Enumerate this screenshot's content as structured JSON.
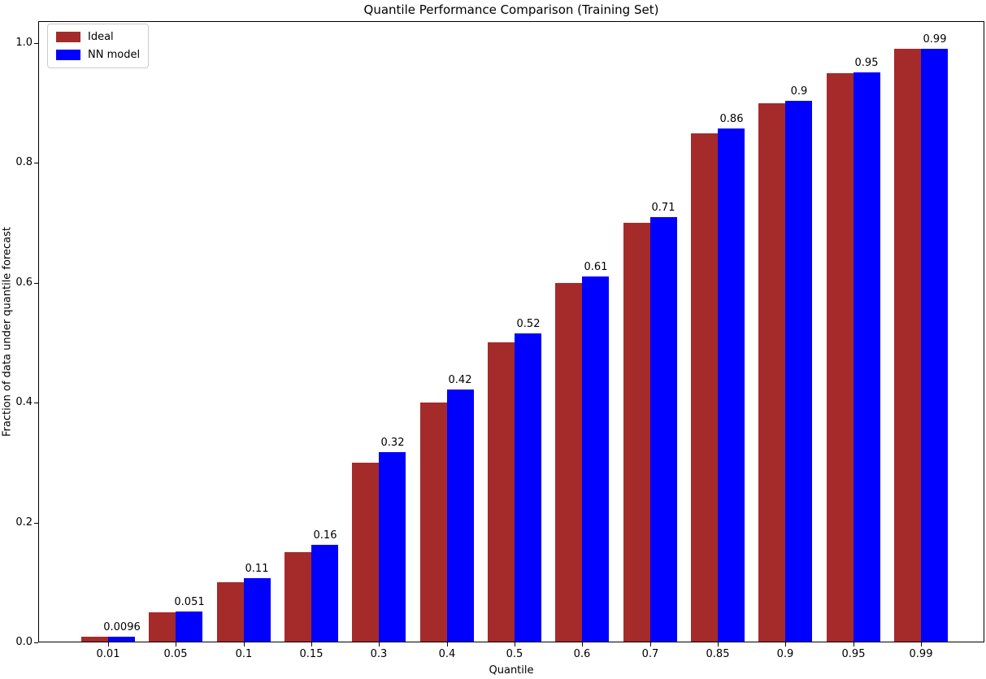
{
  "chart_data": {
    "type": "bar",
    "title": "Quantile Performance Comparison (Training Set)",
    "xlabel": "Quantile",
    "ylabel": "Fraction of data under quantile forecast",
    "categories": [
      "0.01",
      "0.05",
      "0.1",
      "0.15",
      "0.3",
      "0.4",
      "0.5",
      "0.6",
      "0.7",
      "0.85",
      "0.9",
      "0.95",
      "0.99"
    ],
    "series": [
      {
        "name": "Ideal",
        "color": "#a52a2a",
        "values": [
          0.01,
          0.05,
          0.1,
          0.15,
          0.3,
          0.4,
          0.5,
          0.6,
          0.7,
          0.85,
          0.9,
          0.95,
          0.99
        ]
      },
      {
        "name": "NN model",
        "color": "#0000ff",
        "values": [
          0.0096,
          0.051,
          0.107,
          0.163,
          0.318,
          0.422,
          0.516,
          0.61,
          0.709,
          0.857,
          0.903,
          0.951,
          0.99
        ]
      }
    ],
    "bar_labels": [
      "0.0096",
      "0.051",
      "0.11",
      "0.16",
      "0.32",
      "0.42",
      "0.52",
      "0.61",
      "0.71",
      "0.86",
      "0.9",
      "0.95",
      "0.99"
    ],
    "y_ticks": [
      "0.0",
      "0.2",
      "0.4",
      "0.6",
      "0.8",
      "1.0"
    ],
    "y_tick_values": [
      0.0,
      0.2,
      0.4,
      0.6,
      0.8,
      1.0
    ],
    "ylim": [
      0.0,
      1.04
    ],
    "grid": false,
    "legend_position": "upper left",
    "background_color": "#ffffff",
    "axis_color": "#000000"
  }
}
